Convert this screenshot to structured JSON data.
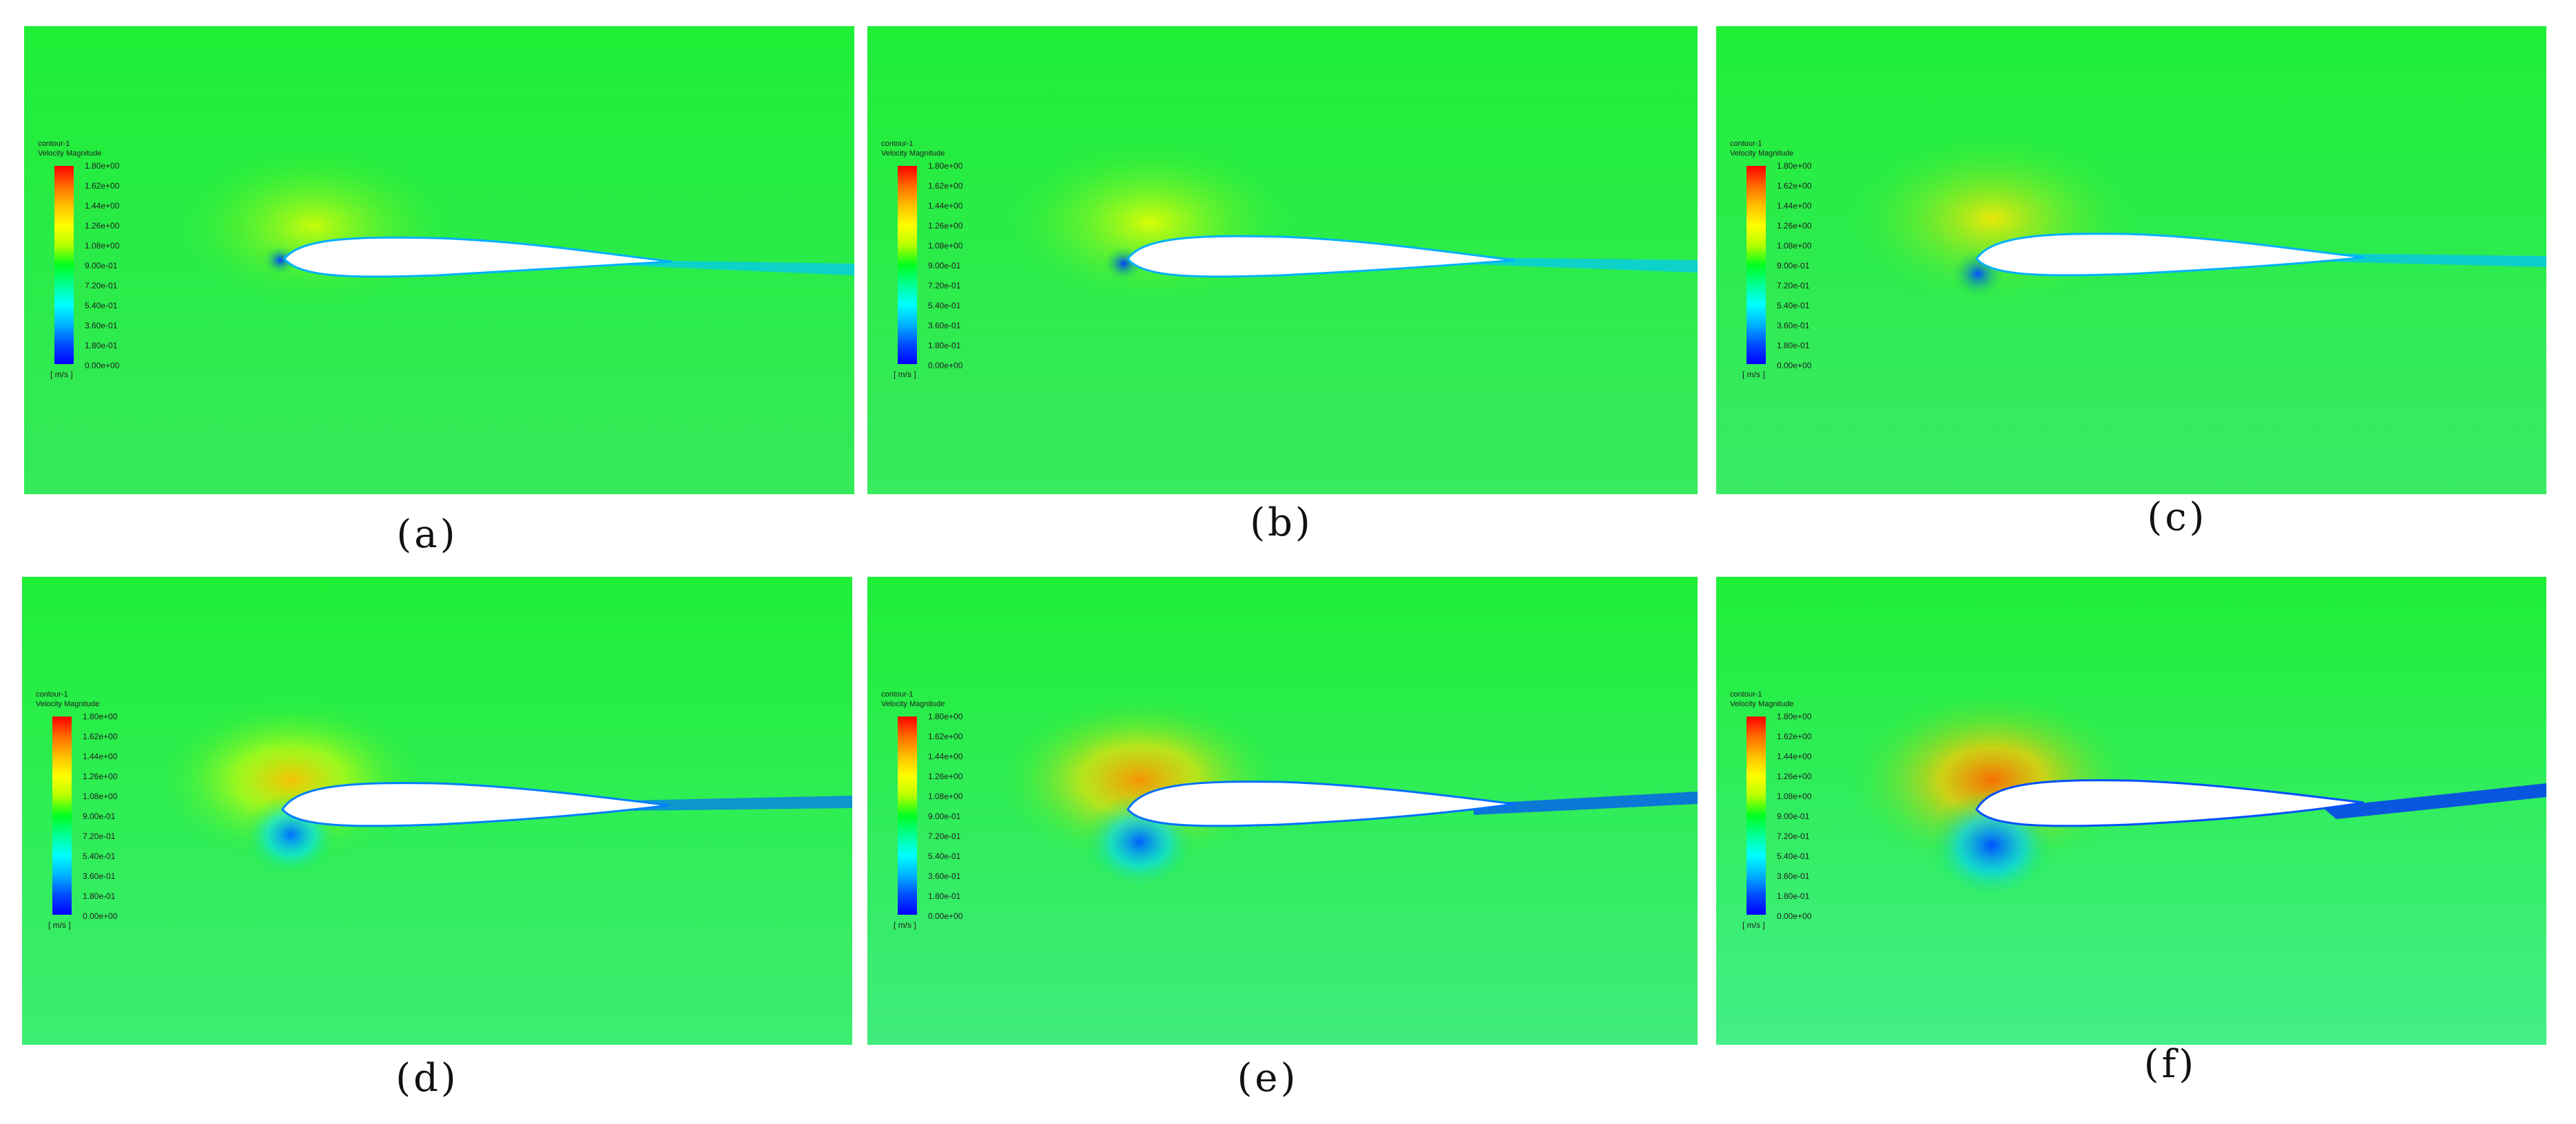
{
  "legend": {
    "title": "contour-1",
    "variable": "Velocity Magnitude",
    "unit": "[ m/s ]",
    "ticks": [
      "1.80e+00",
      "1.62e+00",
      "1.44e+00",
      "1.26e+00",
      "1.08e+00",
      "9.00e-01",
      "7.20e-01",
      "5.40e-01",
      "3.60e-01",
      "1.80e-01",
      "0.00e+00"
    ]
  },
  "panels": [
    {
      "caption": "(a)"
    },
    {
      "caption": "(b)"
    },
    {
      "caption": "(c)"
    },
    {
      "caption": "(d)"
    },
    {
      "caption": "(e)"
    },
    {
      "caption": "(f)"
    }
  ],
  "colors": {
    "freestream": "#22ee3a",
    "high": "#ffb000",
    "low": "#0030ff",
    "airfoil": "#ffffff"
  }
}
